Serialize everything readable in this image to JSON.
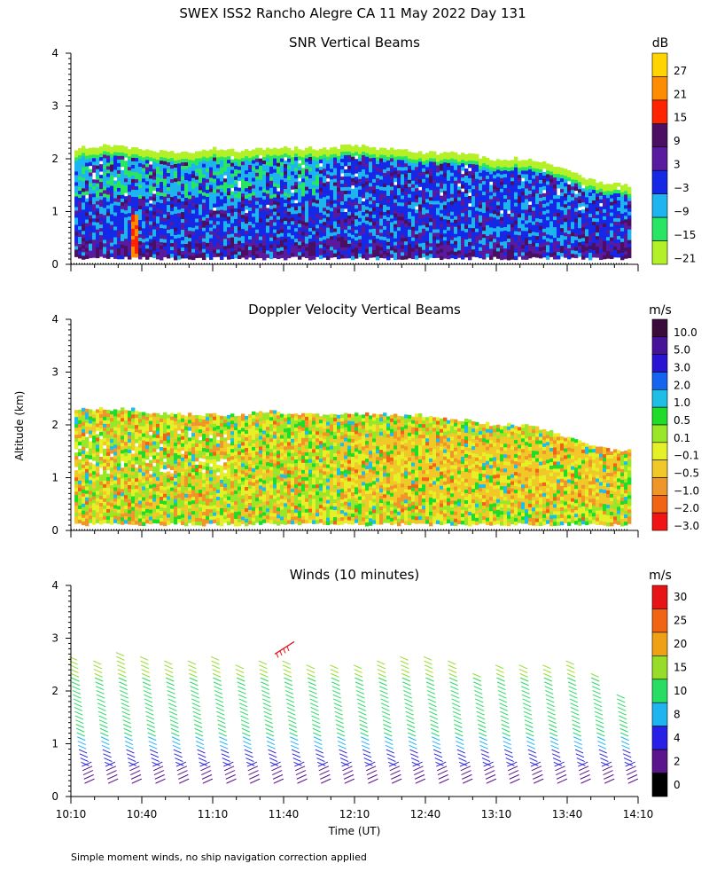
{
  "figure": {
    "title": "SWEX ISS2 Rancho Alegre CA  11 May 2022 Day 131",
    "ylabel": "Altitude (km)",
    "xlabel": "Time (UT)",
    "footnote": "Simple moment winds, no ship navigation correction applied"
  },
  "chart_data": [
    {
      "type": "heatmap",
      "title": "SNR Vertical Beams",
      "colorbar": {
        "unit": "dB",
        "labels": [
          "27",
          "21",
          "15",
          "9",
          "3",
          "−3",
          "−9",
          "−15",
          "−21"
        ],
        "colors": [
          "#ffd400",
          "#ff8c00",
          "#ff2400",
          "#4a0e63",
          "#5a1aa0",
          "#1428e6",
          "#1eb4f0",
          "#28e664",
          "#b4f028"
        ]
      },
      "ylim": [
        0,
        4
      ],
      "yticks": [
        "0",
        "1",
        "2",
        "3",
        "4"
      ],
      "top_km": [
        2.2,
        2.25,
        2.2,
        2.15,
        2.1,
        2.2,
        2.15,
        2.2,
        2.2,
        2.2,
        2.25,
        2.2,
        2.15,
        2.1,
        2.1,
        2.0,
        2.0,
        1.9,
        1.7,
        1.55,
        1.5
      ]
    },
    {
      "type": "heatmap",
      "title": "Doppler Velocity Vertical Beams",
      "colorbar": {
        "unit": "m/s",
        "labels": [
          "10.0",
          "5.0",
          "3.0",
          "2.0",
          "1.0",
          "0.5",
          "0.1",
          "−0.1",
          "−0.5",
          "−1.0",
          "−2.0",
          "−3.0"
        ],
        "colors": [
          "#3a0a3a",
          "#46129a",
          "#2814d2",
          "#1464f0",
          "#1ebee6",
          "#1edc28",
          "#9ae628",
          "#e6f028",
          "#f0c828",
          "#f09628",
          "#f06414",
          "#f01414"
        ]
      },
      "ylim": [
        0,
        4
      ],
      "yticks": [
        "0",
        "1",
        "2",
        "3",
        "4"
      ],
      "top_km": [
        2.3,
        2.3,
        2.3,
        2.2,
        2.2,
        2.2,
        2.2,
        2.25,
        2.2,
        2.2,
        2.2,
        2.2,
        2.2,
        2.15,
        2.1,
        2.0,
        2.0,
        1.9,
        1.7,
        1.55,
        1.5
      ]
    },
    {
      "type": "scatter",
      "title": "Winds (10 minutes)",
      "colorbar": {
        "unit": "m/s",
        "labels": [
          "30",
          "25",
          "20",
          "15",
          "10",
          "8",
          "4",
          "2",
          "0"
        ],
        "colors": [
          "#e61414",
          "#f06414",
          "#f0a014",
          "#96dc28",
          "#28dc64",
          "#1eb4f0",
          "#2820e6",
          "#5a148c",
          "#000000"
        ]
      },
      "ylim": [
        0,
        4
      ],
      "yticks": [
        "0",
        "1",
        "2",
        "3",
        "4"
      ],
      "xticks": [
        "10:10",
        "10:40",
        "11:10",
        "11:40",
        "12:10",
        "12:40",
        "13:10",
        "13:40",
        "14:10"
      ],
      "profile_times": [
        "10:13",
        "10:23",
        "10:33",
        "10:43",
        "10:53",
        "11:03",
        "11:13",
        "11:23",
        "11:33",
        "11:43",
        "11:53",
        "12:03",
        "12:13",
        "12:23",
        "12:33",
        "12:43",
        "12:53",
        "13:03",
        "13:13",
        "13:23",
        "13:33",
        "13:43",
        "13:53",
        "14:03"
      ],
      "profile_top_km": [
        2.7,
        2.6,
        2.8,
        2.7,
        2.6,
        2.6,
        2.7,
        2.5,
        2.6,
        2.6,
        2.5,
        2.5,
        2.5,
        2.6,
        2.7,
        2.7,
        2.6,
        2.4,
        2.5,
        2.5,
        2.5,
        2.6,
        2.4,
        2.0
      ],
      "outlier_barb": {
        "time": "11:40",
        "altitude_km": 2.9,
        "speed_class": "30"
      }
    }
  ]
}
